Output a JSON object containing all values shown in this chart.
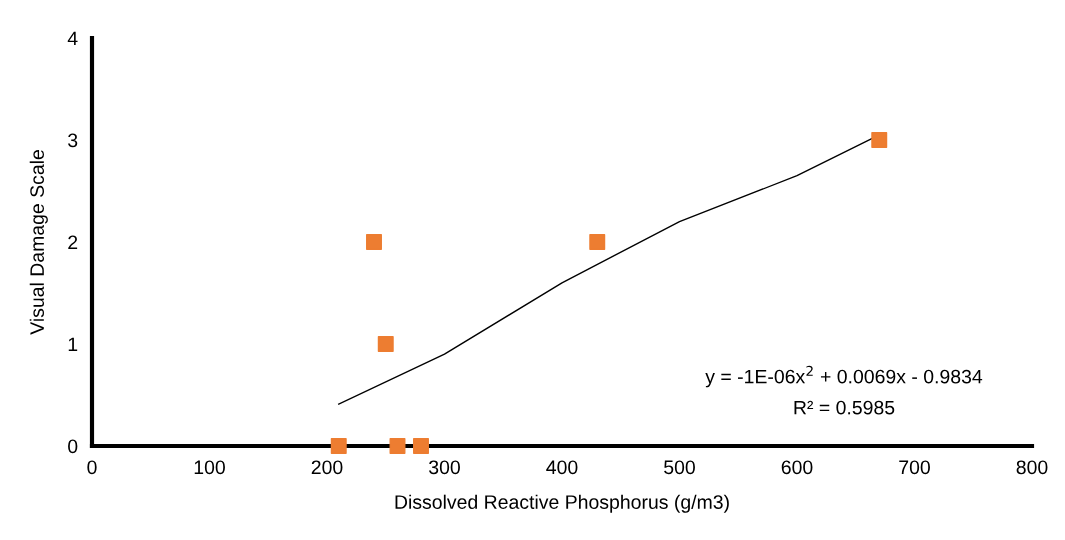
{
  "chart_data": {
    "type": "scatter",
    "xlabel": "Dissolved Reactive Phosphorus (g/m3)",
    "ylabel": "Visual Damage Scale",
    "xlim": [
      0,
      800
    ],
    "xticks": [
      0,
      100,
      200,
      300,
      400,
      500,
      600,
      700,
      800
    ],
    "ylim": [
      0,
      4
    ],
    "yticks": [
      0,
      1,
      2,
      3,
      4
    ],
    "grid": false,
    "legend": false,
    "series": [
      {
        "marker": "square",
        "color": "#ed7d31",
        "x": [
          210,
          260,
          280,
          240,
          250,
          430,
          670
        ],
        "values": [
          0,
          0,
          0,
          2,
          1,
          2,
          3
        ]
      },
      {
        "type": "line",
        "color": "#000000",
        "x": [
          210,
          300,
          400,
          500,
          600,
          670
        ],
        "values": [
          0.41,
          0.9,
          1.6,
          2.2,
          2.65,
          3.05
        ]
      }
    ],
    "annotations": [
      "y = -1E-06x$^{2}$ + 0.0069x - 0.9834",
      "R² = 0.5985"
    ]
  }
}
